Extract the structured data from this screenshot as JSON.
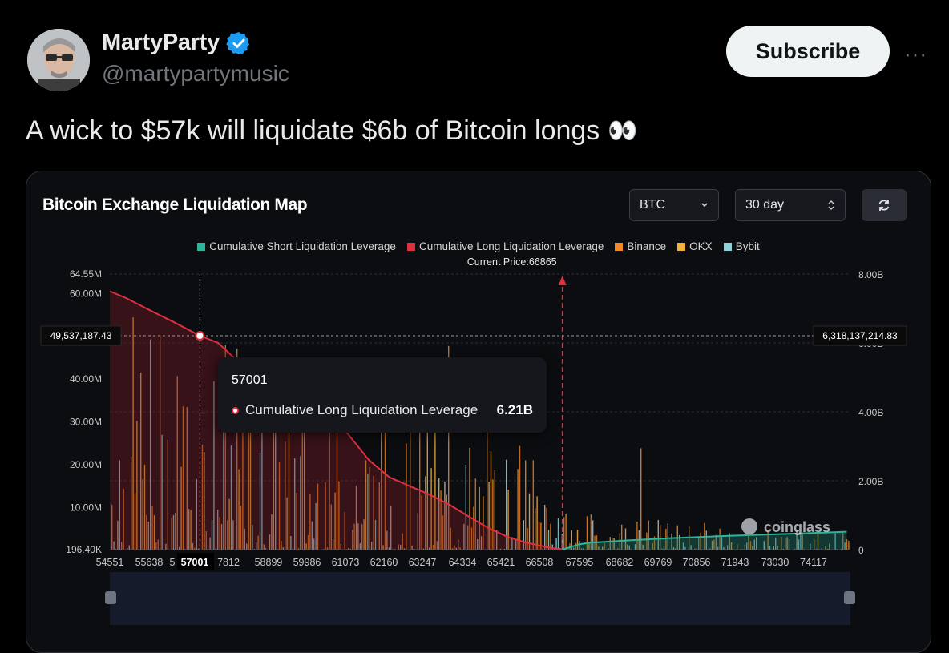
{
  "tweet": {
    "author_name": "MartyParty",
    "handle": "@martypartymusic",
    "subscribe_label": "Subscribe",
    "more_label": "···",
    "text": "A wick to $57k will liquidate $6b of Bitcoin longs",
    "emoji": "👀"
  },
  "chart_card": {
    "title": "Bitcoin Exchange Liquidation Map",
    "symbol_select": "BTC",
    "period_select": "30 day",
    "watermark": "coinglass"
  },
  "chart_data": {
    "type": "bar",
    "title": "Bitcoin Exchange Liquidation Map",
    "legend": [
      {
        "name": "Cumulative Short Liquidation Leverage",
        "color": "#2bb59a"
      },
      {
        "name": "Cumulative Long Liquidation Leverage",
        "color": "#e0303f"
      },
      {
        "name": "Binance",
        "color": "#f08a24"
      },
      {
        "name": "OKX",
        "color": "#f2b33a"
      },
      {
        "name": "Bybit",
        "color": "#8ed3d9"
      }
    ],
    "x_ticks": [
      "54551",
      "55638",
      "5",
      "57001",
      "7812",
      "58899",
      "59986",
      "61073",
      "62160",
      "63247",
      "64334",
      "65421",
      "66508",
      "67595",
      "68682",
      "69769",
      "70856",
      "71943",
      "73030",
      "74117"
    ],
    "left_axis_labels": [
      "64.55M",
      "60.00M",
      "40.00M",
      "30.00M",
      "20.00M",
      "10.00M",
      "196.40K"
    ],
    "left_axis_values": [
      64550000,
      60000000,
      40000000,
      30000000,
      20000000,
      10000000,
      196400
    ],
    "right_axis_labels": [
      "8.00B",
      "6.00B",
      "4.00B",
      "2.00B",
      "0"
    ],
    "right_axis_values": [
      8000000000,
      6000000000,
      4000000000,
      2000000000,
      0
    ],
    "current_price_label": "Current Price:66865",
    "current_price": 66865,
    "crosshair": {
      "left_value_label": "49,537,187.43",
      "right_value_label": "6,318,137,214.83",
      "x_label": "57001"
    },
    "tooltip": {
      "title": "57001",
      "series": "Cumulative Long Liquidation Leverage",
      "value": "6.21B"
    },
    "long_cumulative_billions": [
      [
        54551,
        7.5
      ],
      [
        55000,
        7.3
      ],
      [
        55638,
        6.95
      ],
      [
        56300,
        6.6
      ],
      [
        57001,
        6.21
      ],
      [
        57500,
        6.0
      ],
      [
        58000,
        5.5
      ],
      [
        58899,
        4.9
      ],
      [
        59986,
        4.4
      ],
      [
        60500,
        4.0
      ],
      [
        61073,
        3.3
      ],
      [
        61600,
        2.6
      ],
      [
        62160,
        2.1
      ],
      [
        62700,
        1.85
      ],
      [
        63247,
        1.6
      ],
      [
        63800,
        1.3
      ],
      [
        64334,
        0.95
      ],
      [
        64900,
        0.6
      ],
      [
        65421,
        0.35
      ],
      [
        65900,
        0.2
      ],
      [
        66508,
        0.06
      ],
      [
        66865,
        0.0
      ]
    ],
    "short_cumulative_billions": [
      [
        66865,
        0.0
      ],
      [
        67300,
        0.15
      ],
      [
        67595,
        0.2
      ],
      [
        68682,
        0.27
      ],
      [
        69769,
        0.33
      ],
      [
        70856,
        0.38
      ],
      [
        71943,
        0.42
      ],
      [
        73030,
        0.46
      ],
      [
        74117,
        0.5
      ],
      [
        74600,
        0.52
      ]
    ],
    "x_range": [
      54551,
      74700
    ],
    "left_range": [
      196400,
      64550000
    ],
    "right_range": [
      0,
      8000000000
    ]
  }
}
